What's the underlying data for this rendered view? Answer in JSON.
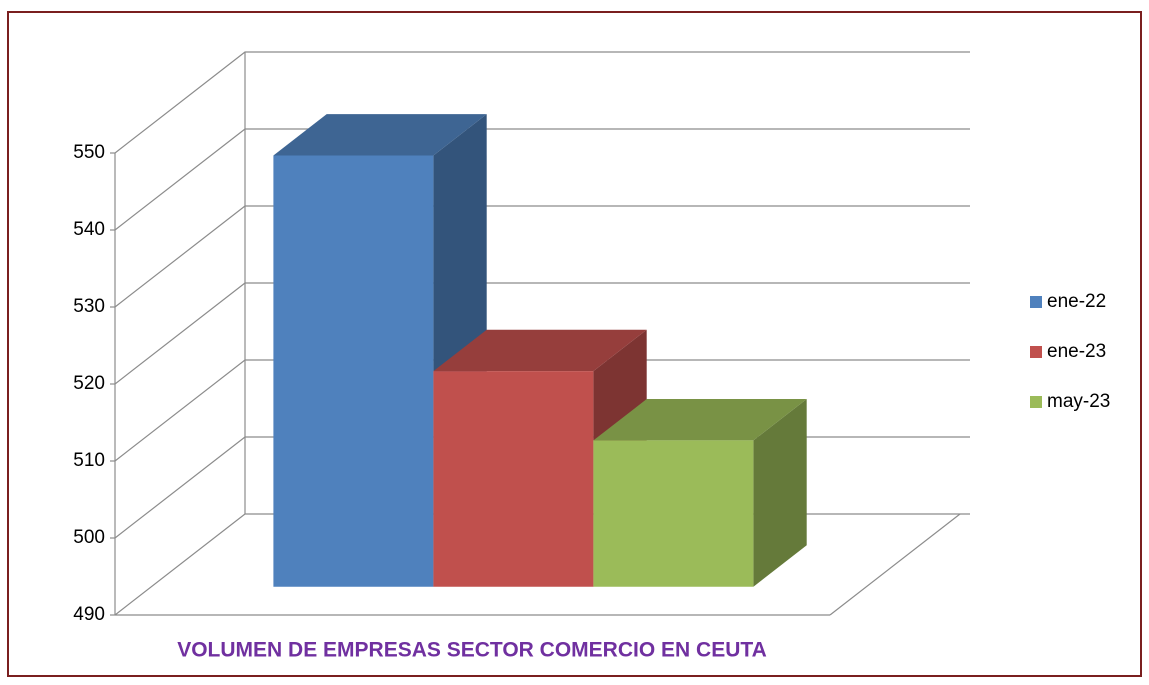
{
  "chart_data": {
    "type": "bar3d",
    "title": "VOLUMEN DE EMPRESAS SECTOR COMERCIO EN CEUTA",
    "series": [
      {
        "name": "ene-22",
        "color": "#4f81bd",
        "values": [
          546
        ]
      },
      {
        "name": "ene-23",
        "color": "#c0504d",
        "values": [
          518
        ]
      },
      {
        "name": "may-23",
        "color": "#9bbb59",
        "values": [
          509
        ]
      }
    ],
    "ylim": [
      490,
      550
    ],
    "yticks": [
      490,
      500,
      510,
      520,
      530,
      540,
      550
    ],
    "grid": true,
    "legend": "right"
  }
}
